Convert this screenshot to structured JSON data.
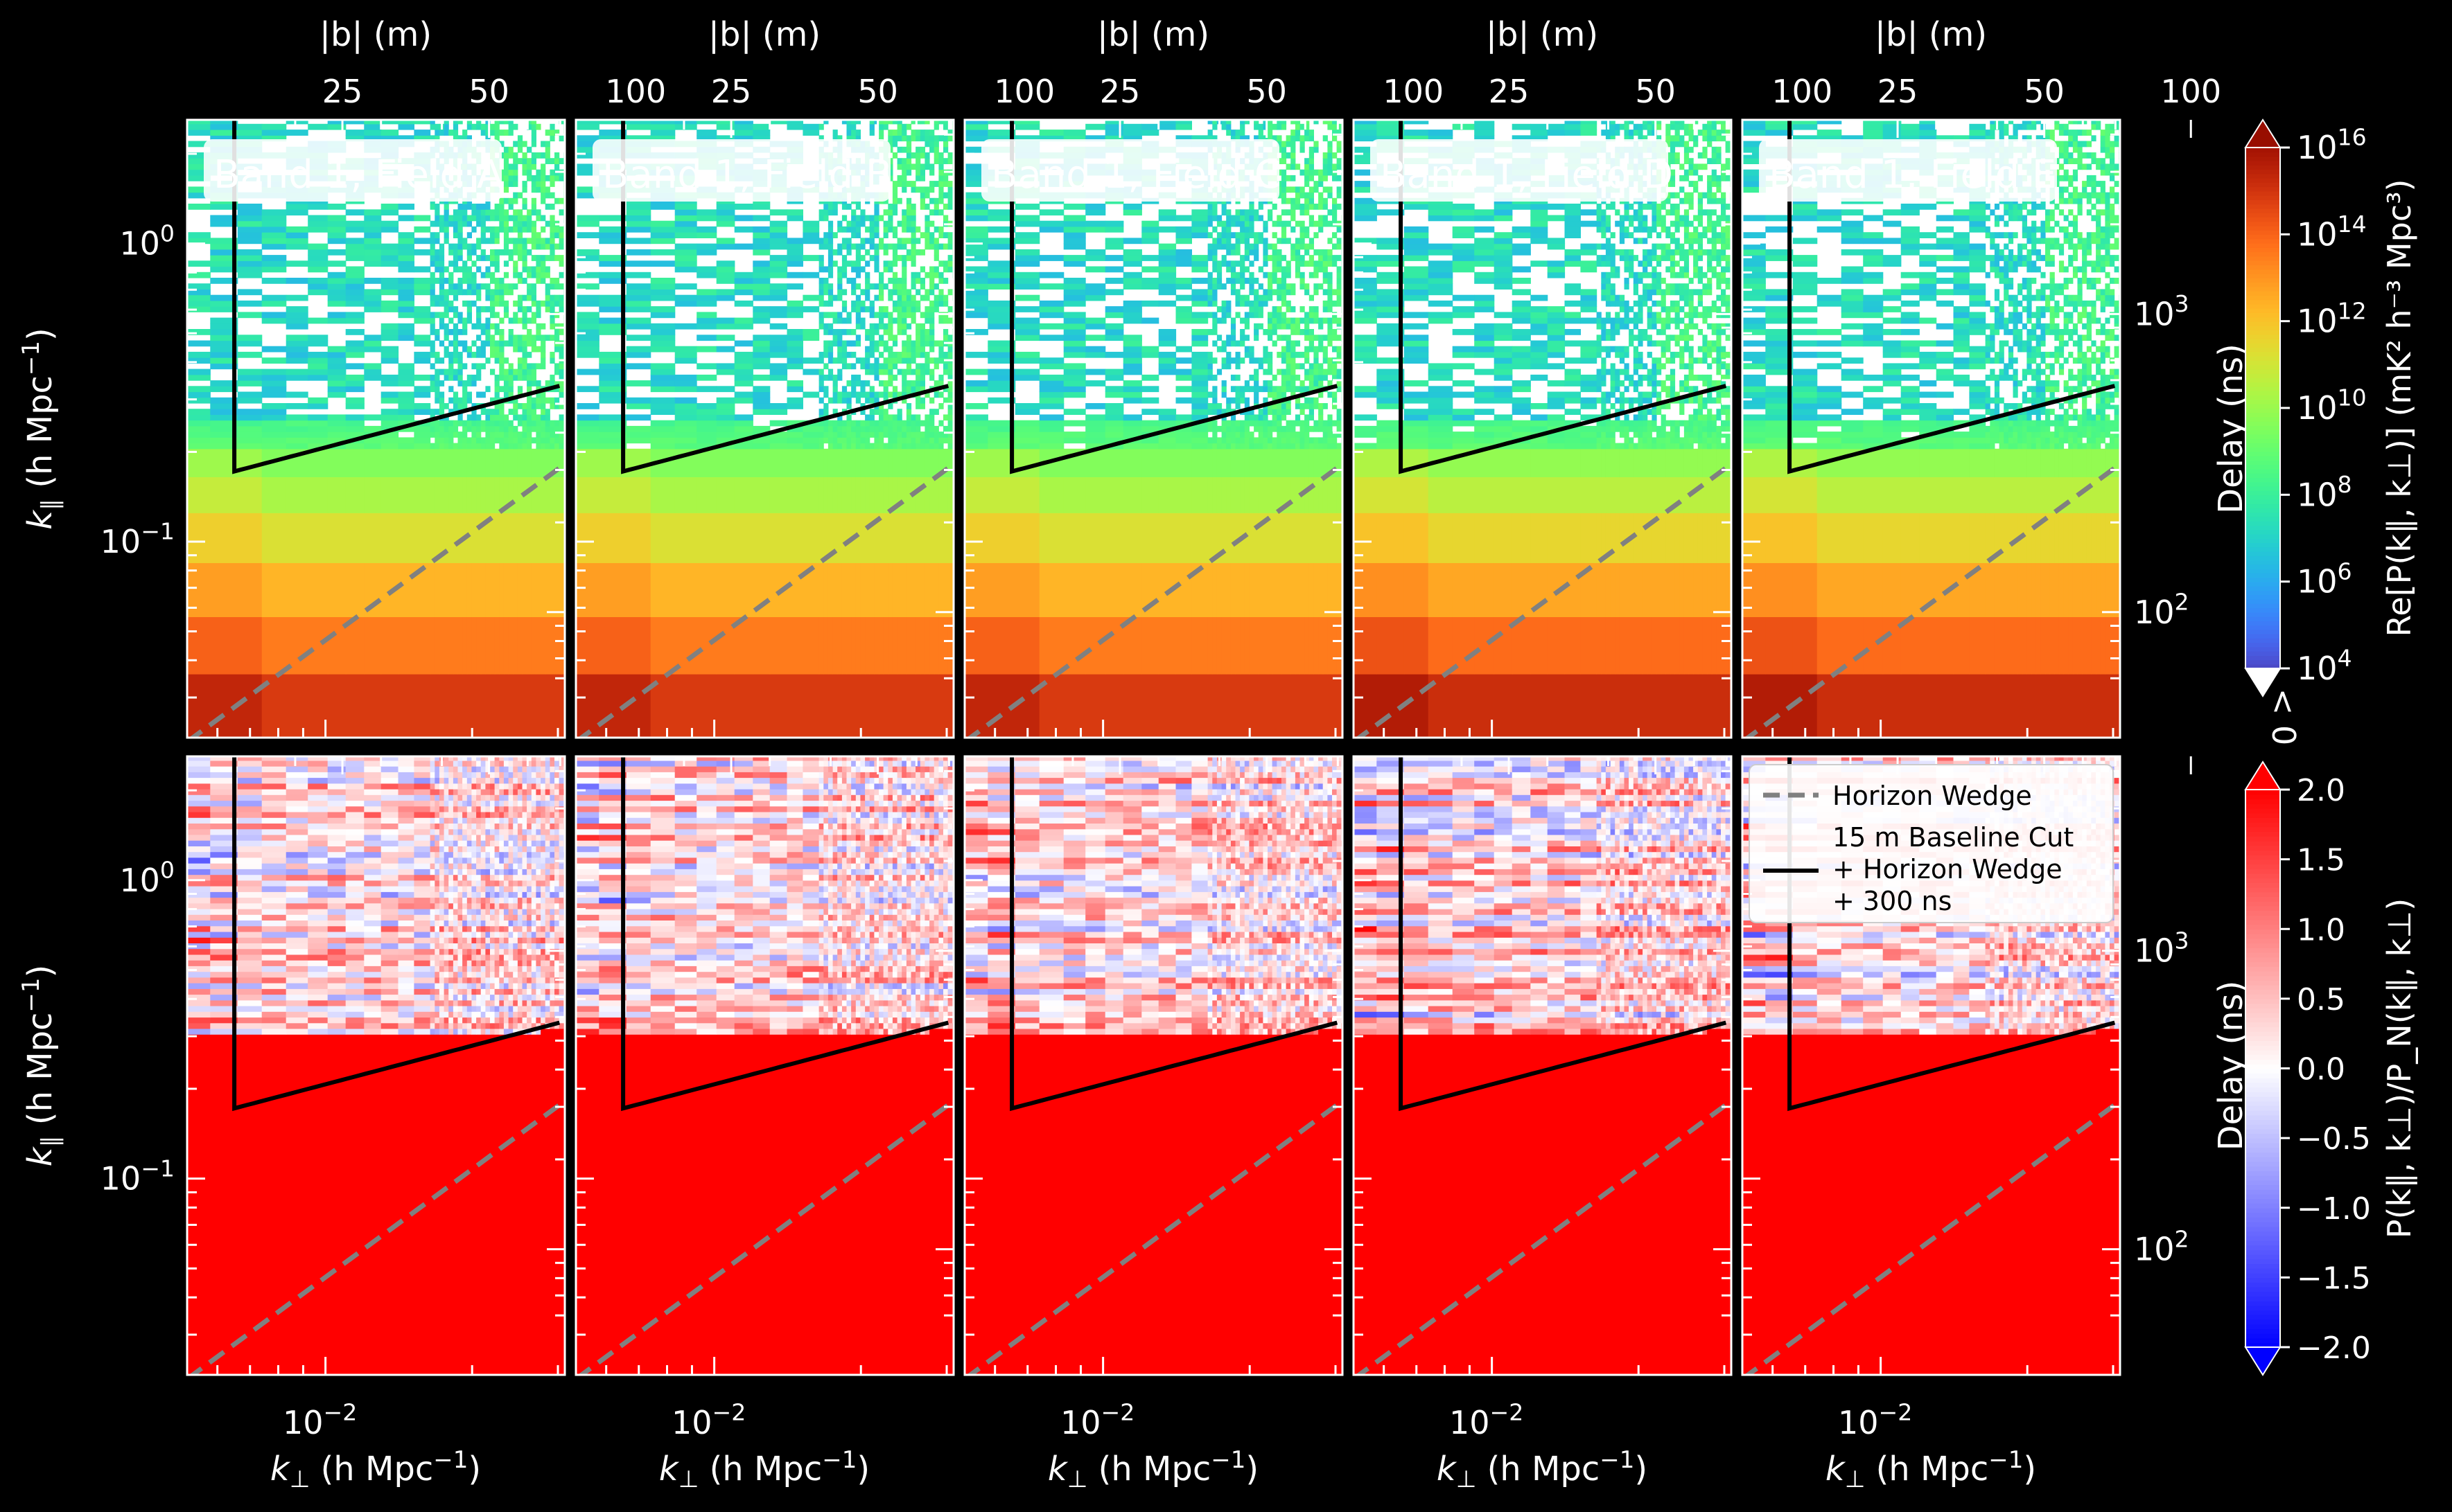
{
  "chart_data": {
    "type": "heatmap",
    "panels": [
      {
        "field": "A",
        "title": "Band 1, Field A"
      },
      {
        "field": "B",
        "title": "Band 1, Field B"
      },
      {
        "field": "C",
        "title": "Band 1, Field C"
      },
      {
        "field": "D",
        "title": "Band 1, Field D"
      },
      {
        "field": "E",
        "title": "Band 1, Field E"
      }
    ],
    "rows": [
      {
        "quantity": "Re[P(k_par, k_perp)]",
        "colormap": "turbo",
        "color_scale": "log",
        "clim": [
          10000.0,
          1e+16
        ],
        "cbar_extend": "both",
        "under_label": "< 0"
      },
      {
        "quantity": "P(k_par, k_perp)/P_N(k_par, k_perp)",
        "colormap": "bwr",
        "color_scale": "linear",
        "clim": [
          -2.0,
          2.0
        ],
        "cbar_extend": "both"
      }
    ],
    "x_axis": {
      "label_prefix": "k",
      "label_sub": "⊥",
      "label_units": "(h Mpc",
      "label_close": ")",
      "scale": "log",
      "lim": [
        0.0052,
        0.031
      ],
      "major_ticks": [
        0.01
      ],
      "major_tick_labels": [
        "10",
        "−2"
      ]
    },
    "x_top_axis": {
      "label": "|b| (m)",
      "ticks": [
        25,
        50,
        100
      ],
      "tick_labels": [
        "25",
        "50",
        "100"
      ]
    },
    "y_axis": {
      "label_prefix": "k",
      "label_sub": "∥",
      "label_units": "(h Mpc",
      "label_close": ")",
      "scale": "log",
      "lim": [
        0.022,
        2.6
      ],
      "major_ticks": [
        0.1,
        1.0
      ],
      "major_tick_labels": [
        [
          "10",
          "−1"
        ],
        [
          "10",
          "0"
        ]
      ]
    },
    "y_right_axis": {
      "label": "Delay (ns)",
      "ticks": [
        100,
        1000
      ],
      "tick_labels": [
        [
          "10",
          "2"
        ],
        [
          "10",
          "3"
        ]
      ]
    },
    "colorbar_top": {
      "label": "Re[P(k∥, k⊥)] (mK² h⁻³ Mpc³)",
      "ticks": [
        4,
        6,
        8,
        10,
        12,
        14,
        16
      ],
      "tick_labels": [
        [
          "10",
          "4"
        ],
        [
          "10",
          "6"
        ],
        [
          "10",
          "8"
        ],
        [
          "10",
          "10"
        ],
        [
          "10",
          "12"
        ],
        [
          "10",
          "14"
        ],
        [
          "10",
          "16"
        ]
      ],
      "under_text": "< 0"
    },
    "colorbar_bottom": {
      "label": "P(k∥, k⊥)/P_N(k∥, k⊥)",
      "ticks": [
        2.0,
        1.5,
        1.0,
        0.5,
        0.0,
        -0.5,
        -1.0,
        -1.5,
        -2.0
      ],
      "tick_labels": [
        "2.0",
        "1.5",
        "1.0",
        "0.5",
        "0.0",
        "−0.5",
        "−1.0",
        "−1.5",
        "−2.0"
      ]
    },
    "overlays": {
      "horizon_wedge": {
        "label": "Horizon Wedge",
        "style": "dashed",
        "color": "#808080",
        "points": [
          [
            0.0052,
            0.0213
          ],
          [
            0.031,
            0.182
          ]
        ]
      },
      "baseline_cut": {
        "label_lines": [
          "15 m Baseline Cut",
          "+ Horizon Wedge",
          "+ 300 ns"
        ],
        "style": "solid",
        "color": "#000000",
        "k_perp_cut": 0.0065,
        "curve": [
          [
            0.0065,
            2.6
          ],
          [
            0.0065,
            0.172
          ],
          [
            0.031,
            0.337
          ]
        ]
      }
    },
    "legend_position": "upper-right of bottom row, field E",
    "grid": false
  }
}
